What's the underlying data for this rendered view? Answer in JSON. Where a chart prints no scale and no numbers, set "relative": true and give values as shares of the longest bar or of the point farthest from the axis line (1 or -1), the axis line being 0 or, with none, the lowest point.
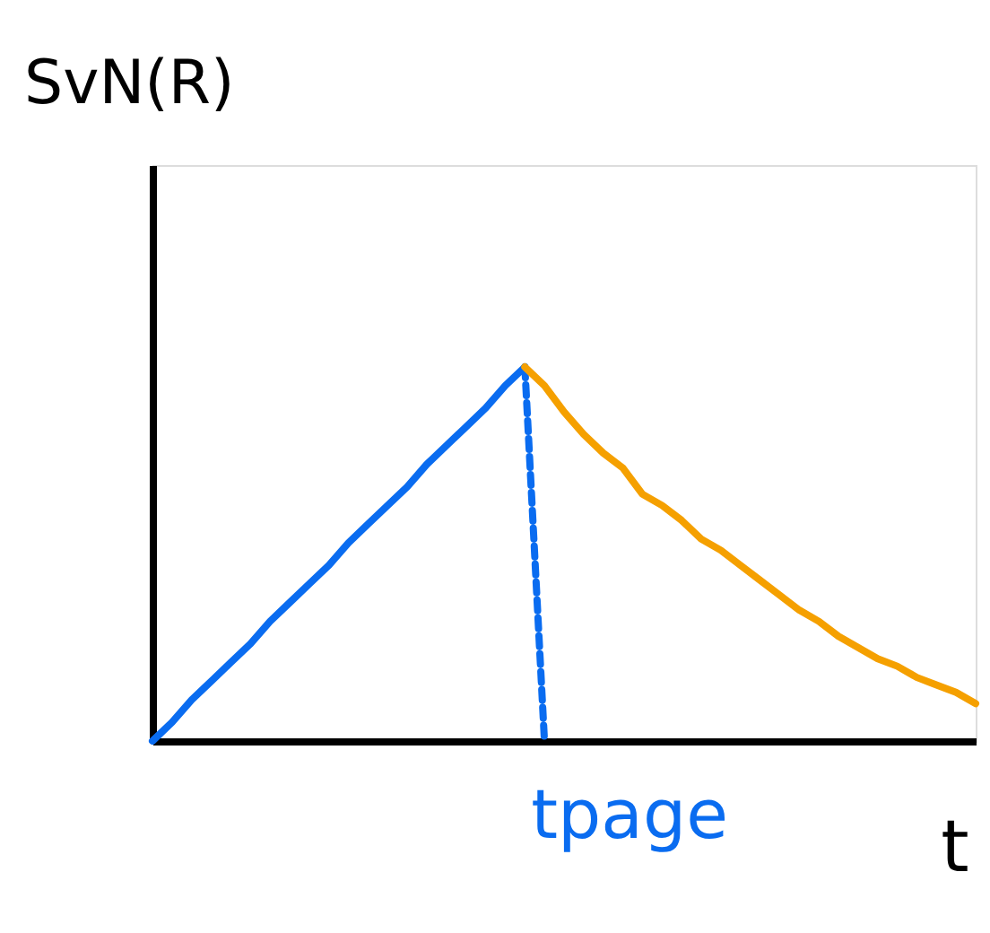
{
  "chart_data": {
    "type": "line",
    "relative": true,
    "xlabel": "t",
    "ylabel": "SvN(R)",
    "categories": [
      null,
      null,
      null,
      null,
      null,
      null,
      null,
      null,
      null,
      null,
      null,
      null,
      null,
      null,
      null,
      null,
      null,
      null,
      null,
      null,
      null,
      null,
      null,
      null,
      null,
      null,
      null,
      null,
      null,
      null,
      null,
      null,
      null,
      null,
      null,
      null,
      null,
      null,
      null,
      null,
      null,
      null,
      null
    ],
    "series": [
      {
        "color": "#0a6cf0",
        "line_style": "solid",
        "values": [
          0,
          0.05,
          0.11,
          0.16,
          0.21,
          0.26,
          0.32,
          0.37,
          0.42,
          0.47,
          0.53,
          0.58,
          0.63,
          0.68,
          0.74,
          0.79,
          0.84,
          0.89,
          0.95,
          1,
          null,
          null,
          null,
          null,
          null,
          null,
          null,
          null,
          null,
          null,
          null,
          null,
          null,
          null,
          null,
          null,
          null,
          null,
          null,
          null,
          null,
          null,
          null
        ]
      },
      {
        "color": "#0a6cf0",
        "line_style": "dashed",
        "values": [
          null,
          null,
          null,
          null,
          null,
          null,
          null,
          null,
          null,
          null,
          null,
          null,
          null,
          null,
          null,
          null,
          null,
          null,
          null,
          1,
          0,
          null,
          null,
          null,
          null,
          null,
          null,
          null,
          null,
          null,
          null,
          null,
          null,
          null,
          null,
          null,
          null,
          null,
          null,
          null,
          null,
          null,
          null
        ]
      },
      {
        "color": "#f5a000",
        "line_style": "solid",
        "values": [
          null,
          null,
          null,
          null,
          null,
          null,
          null,
          null,
          null,
          null,
          null,
          null,
          null,
          null,
          null,
          null,
          null,
          null,
          null,
          1,
          0.95,
          0.88,
          0.82,
          0.77,
          0.73,
          0.66,
          0.63,
          0.59,
          0.54,
          0.51,
          0.47,
          0.43,
          0.39,
          0.35,
          0.32,
          0.28,
          0.25,
          0.22,
          0.2,
          0.17,
          0.15,
          0.13,
          0.1
        ]
      }
    ],
    "annotations": [
      "tpage"
    ]
  }
}
